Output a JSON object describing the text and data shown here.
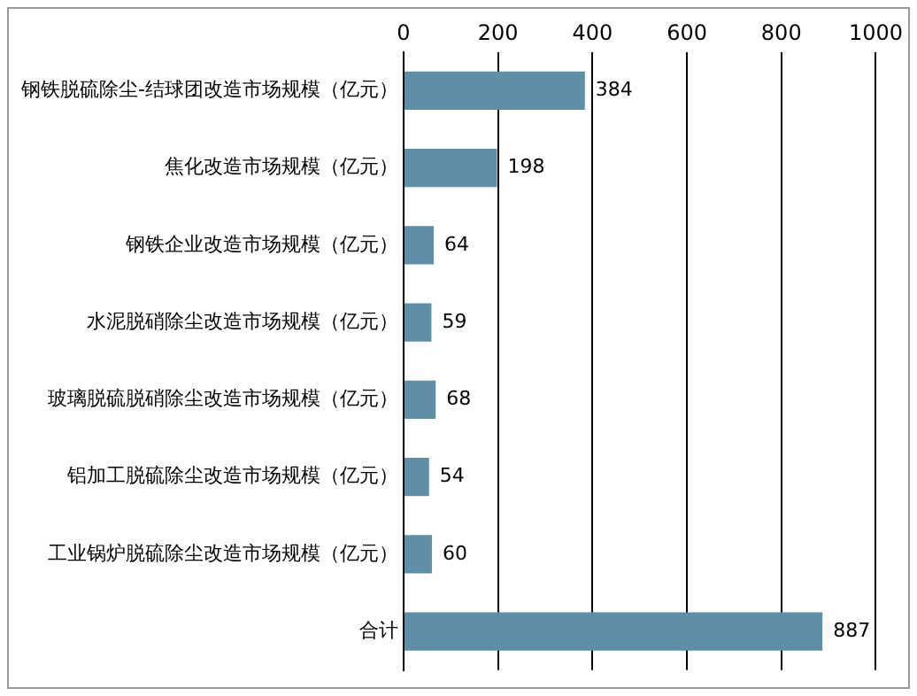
{
  "chart_data": {
    "type": "bar",
    "orientation": "horizontal",
    "categories": [
      "钢铁脱硫除尘-结球团改造市场规模（亿元）",
      "焦化改造市场规模（亿元）",
      "钢铁企业改造市场规模（亿元）",
      "水泥脱硝除尘改造市场规模（亿元）",
      "玻璃脱硫脱硝除尘改造市场规模（亿元）",
      "铝加工脱硫除尘改造市场规模（亿元）",
      "工业锅炉脱硫除尘改造市场规模（亿元）",
      "合计"
    ],
    "values": [
      384,
      198,
      64,
      59,
      68,
      54,
      60,
      887
    ],
    "color": "#5f8fa6",
    "xlim": [
      0,
      1000
    ],
    "xticks": [
      0,
      200,
      400,
      600,
      800,
      1000
    ],
    "grid": "x",
    "legend": false,
    "data_labels": true
  }
}
